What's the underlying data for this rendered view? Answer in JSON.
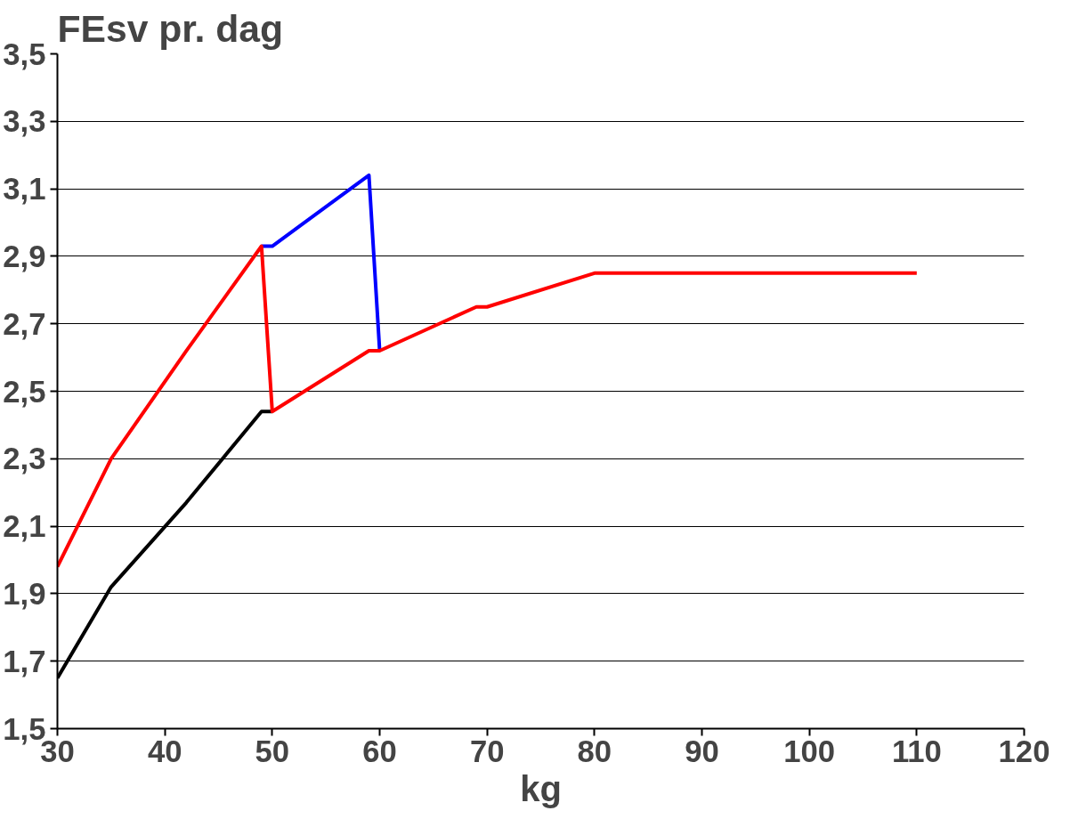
{
  "chart_data": {
    "type": "line",
    "title": "FEsv pr. dag",
    "xlabel": "kg",
    "xlim": [
      30,
      120
    ],
    "xticks": [
      30,
      40,
      50,
      60,
      70,
      80,
      90,
      100,
      110,
      120
    ],
    "ylim": [
      1.5,
      3.5
    ],
    "yticks": [
      {
        "value": 1.5,
        "label": "1,5"
      },
      {
        "value": 1.7,
        "label": "1,7"
      },
      {
        "value": 1.9,
        "label": "1,9"
      },
      {
        "value": 2.1,
        "label": "2,1"
      },
      {
        "value": 2.3,
        "label": "2,3"
      },
      {
        "value": 2.5,
        "label": "2,5"
      },
      {
        "value": 2.7,
        "label": "2,7"
      },
      {
        "value": 2.9,
        "label": "2,9"
      },
      {
        "value": 3.1,
        "label": "3,1"
      },
      {
        "value": 3.3,
        "label": "3,3"
      },
      {
        "value": 3.5,
        "label": "3,5"
      }
    ],
    "grid": "y",
    "marker": "none",
    "line_style": "solid",
    "series": [
      {
        "color": "#000000",
        "x": [
          30,
          35,
          42,
          49,
          50
        ],
        "values": [
          1.65,
          1.92,
          2.17,
          2.44,
          2.44
        ]
      },
      {
        "color": "#0000ff",
        "x": [
          49,
          50,
          59,
          60
        ],
        "values": [
          2.93,
          2.93,
          3.14,
          2.62
        ]
      },
      {
        "color": "#ff0000",
        "x": [
          30,
          35,
          42,
          49,
          50,
          59,
          60,
          69,
          70,
          80,
          110
        ],
        "values": [
          1.98,
          2.3,
          2.62,
          2.93,
          2.44,
          2.62,
          2.62,
          2.75,
          2.75,
          2.85,
          2.85
        ]
      }
    ]
  }
}
